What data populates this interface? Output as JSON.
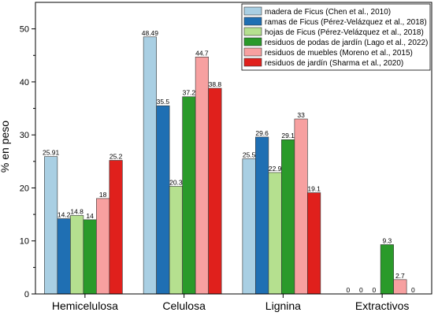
{
  "chart_data": {
    "type": "bar",
    "ylabel": "% en peso",
    "xlabel": "",
    "ylim": [
      0,
      55
    ],
    "yticks": [
      0,
      10,
      20,
      30,
      40,
      50
    ],
    "legend_position": "top-right",
    "categories": [
      "Hemicelulosa",
      "Celulosa",
      "Lignina",
      "Extractivos"
    ],
    "series": [
      {
        "name": "madera de Ficus (Chen et al., 2010)",
        "color": "#a9cfe3",
        "values": [
          25.91,
          48.49,
          25.5,
          0
        ],
        "labels": [
          "25.91",
          "48.49",
          "25.5",
          "0"
        ]
      },
      {
        "name": "ramas de Ficus (Pérez-Velázquez et al., 2018)",
        "color": "#1f6fb3",
        "values": [
          14.2,
          35.5,
          29.6,
          0
        ],
        "labels": [
          "14.2",
          "35.5",
          "29.6",
          "0"
        ]
      },
      {
        "name": "hojas de Ficus (Pérez-Velázquez et al., 2018)",
        "color": "#b5e08f",
        "values": [
          14.8,
          20.3,
          22.9,
          0
        ],
        "labels": [
          "14.8",
          "20.3",
          "22.9",
          "0"
        ]
      },
      {
        "name": "residuos de podas de jardín (Lago et al., 2022)",
        "color": "#2a9a2a",
        "values": [
          14,
          37.2,
          29.1,
          9.3
        ],
        "labels": [
          "14",
          "37.2",
          "29.1",
          "9.3"
        ]
      },
      {
        "name": "residuos de muebles (Moreno et al., 2015)",
        "color": "#f7a0a0",
        "values": [
          18,
          44.7,
          33,
          2.7
        ],
        "labels": [
          "18",
          "44.7",
          "33",
          "2.7"
        ]
      },
      {
        "name": "residuos de jardín (Sharma et al., 2020)",
        "color": "#e0201c",
        "values": [
          25.2,
          38.8,
          19.1,
          0
        ],
        "labels": [
          "25.2",
          "38.8",
          "19.1",
          "0"
        ]
      }
    ]
  }
}
